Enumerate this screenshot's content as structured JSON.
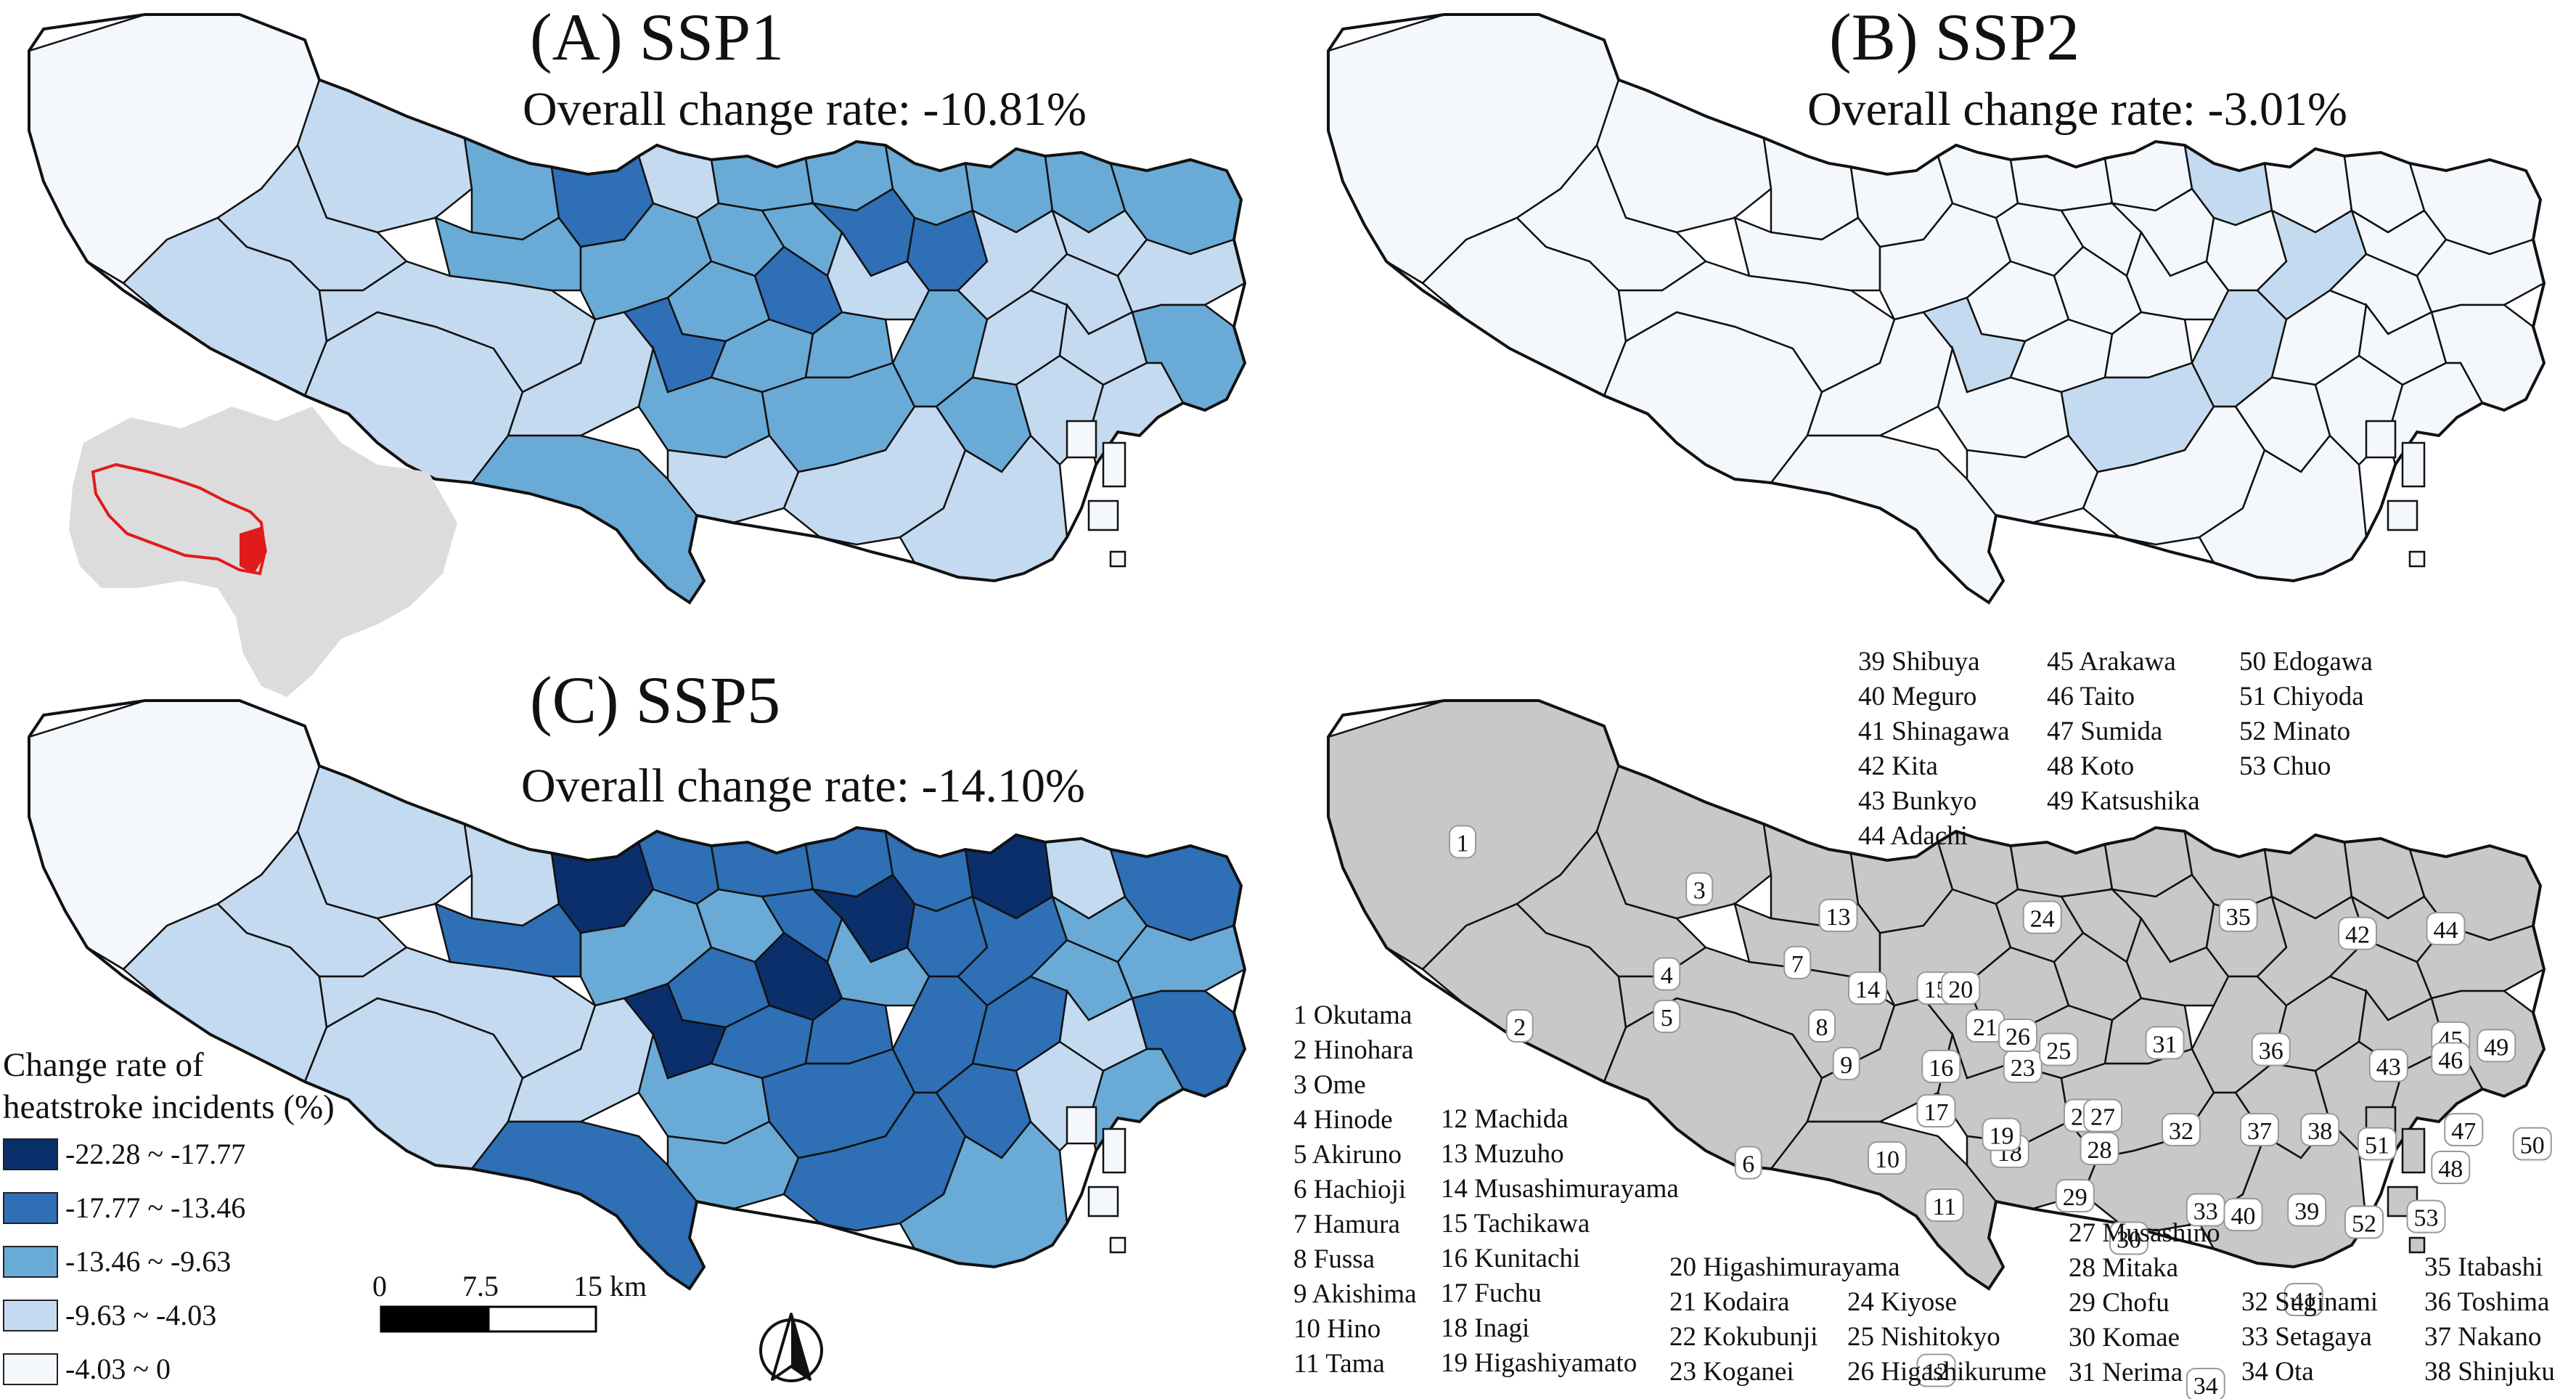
{
  "panels": {
    "a": {
      "title": "(A) SSP1",
      "rate": "Overall change rate: -10.81%"
    },
    "b": {
      "title": "(B) SSP2",
      "rate": "Overall change rate: -3.01%"
    },
    "c": {
      "title": "(C) SSP5",
      "rate": "Overall change rate: -14.10%"
    }
  },
  "legend": {
    "title_line1": "Change rate of",
    "title_line2": "heatstroke incidents (%)",
    "classes": [
      {
        "label": "-22.28 ~ -17.77",
        "color": "#0b2f6b"
      },
      {
        "label": "-17.77 ~ -13.46",
        "color": "#2e6fb5"
      },
      {
        "label": "-13.46 ~ -9.63",
        "color": "#6aaad6"
      },
      {
        "label": "-9.63 ~ -4.03",
        "color": "#c4daf0"
      },
      {
        "label": "-4.03 ~ 0",
        "color": "#f4f8fd"
      }
    ]
  },
  "scale": {
    "zero": "0",
    "mid": "7.5",
    "end": "15 km"
  },
  "north_arrow": {
    "icon": "north-arrow-icon"
  },
  "inset": {
    "land_color": "#dcdcdc",
    "outline_color": "#e01b1b"
  },
  "reference_map": {
    "fill": "#c8c8c8",
    "districts": {
      "col1": [
        "1 Okutama",
        "2 Hinohara",
        "3 Ome",
        "4 Hinode",
        "5 Akiruno",
        "6 Hachioji",
        "7 Hamura",
        "8 Fussa",
        "9 Akishima",
        "10 Hino",
        "11 Tama"
      ],
      "col2": [
        "12 Machida",
        "13 Muzuho",
        "14 Musashimurayama",
        "15 Tachikawa",
        "16 Kunitachi",
        "17 Fuchu",
        "18 Inagi",
        "19 Higashiyamato"
      ],
      "col3": [
        "20 Higashimurayama",
        "21 Kodaira",
        "22 Kokubunji",
        "23 Koganei"
      ],
      "col4": [
        "24 Kiyose",
        "25 Nishitokyo",
        "26 Higashikurume"
      ],
      "col5": [
        "27 Musashino",
        "28 Mitaka",
        "29 Chofu",
        "30 Komae",
        "31 Nerima"
      ],
      "col6": [
        "32 Suginami",
        "33 Setagaya",
        "34 Ota"
      ],
      "col7": [
        "35 Itabashi",
        "36 Toshima",
        "37 Nakano",
        "38 Shinjuku"
      ],
      "top1": [
        "39 Shibuya",
        "40 Meguro",
        "41 Shinagawa",
        "42 Kita",
        "43 Bunkyo",
        "44 Adachi"
      ],
      "top2": [
        "45 Arakawa",
        "46 Taito",
        "47 Sumida",
        "48 Koto",
        "49 Katsushika"
      ],
      "top3": [
        "50 Edogawa",
        "51 Chiyoda",
        "52 Minato",
        "53 Chuo"
      ]
    },
    "map_numbers": [
      "1",
      "2",
      "3",
      "4",
      "5",
      "6",
      "7",
      "8",
      "9",
      "10",
      "11",
      "12",
      "13",
      "14",
      "15",
      "16",
      "17",
      "18",
      "19",
      "20",
      "21",
      "22",
      "23",
      "24",
      "25",
      "26",
      "27",
      "28",
      "29",
      "30",
      "31",
      "32",
      "33",
      "34",
      "35",
      "36",
      "37",
      "38",
      "39",
      "40",
      "41",
      "42",
      "43",
      "44",
      "45",
      "46",
      "47",
      "48",
      "49",
      "50",
      "51",
      "52",
      "53"
    ]
  }
}
